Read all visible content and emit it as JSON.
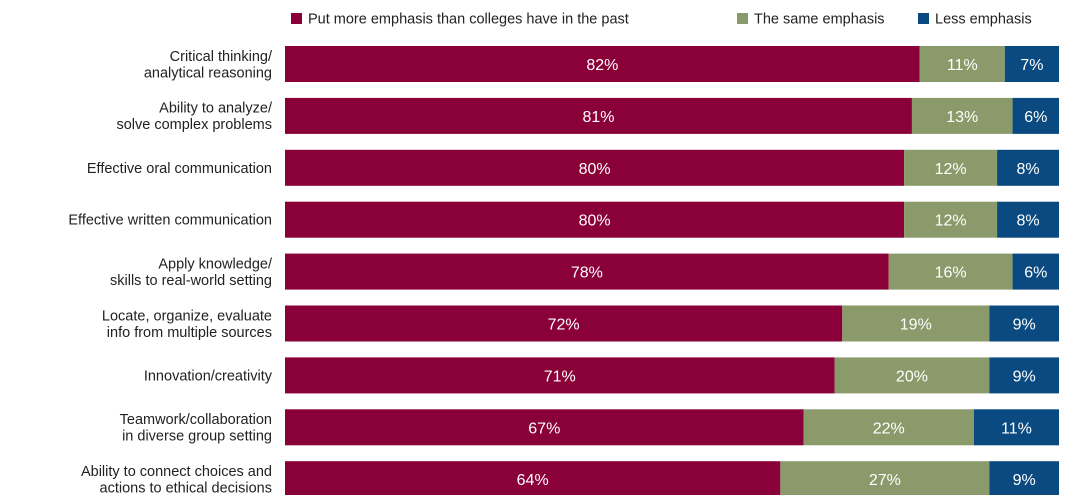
{
  "chart_data": {
    "type": "bar",
    "orientation": "horizontal",
    "stacked": true,
    "categories": [
      [
        "Critical thinking/",
        "analytical reasoning"
      ],
      [
        "Ability to analyze/",
        "solve complex problems"
      ],
      [
        "Effective oral communication"
      ],
      [
        "Effective written communication"
      ],
      [
        "Apply knowledge/",
        "skills to real-world setting"
      ],
      [
        "Locate, organize, evaluate",
        "info from multiple sources"
      ],
      [
        "Innovation/creativity"
      ],
      [
        "Teamwork/collaboration",
        "in diverse group setting"
      ],
      [
        "Ability to connect choices and",
        "actions to ethical decisions"
      ]
    ],
    "series": [
      {
        "name": "Put more emphasis than colleges have in the past",
        "color": "#8a0038",
        "values": [
          82,
          81,
          80,
          80,
          78,
          72,
          71,
          67,
          64
        ]
      },
      {
        "name": "The same emphasis",
        "color": "#8a9a6a",
        "values": [
          11,
          13,
          12,
          12,
          16,
          19,
          20,
          22,
          27
        ]
      },
      {
        "name": "Less emphasis",
        "color": "#0a4a80",
        "values": [
          7,
          6,
          8,
          8,
          6,
          9,
          9,
          11,
          9
        ]
      }
    ],
    "value_suffix": "%",
    "xlim": [
      0,
      100
    ],
    "legend_position": "top",
    "grid": false
  }
}
